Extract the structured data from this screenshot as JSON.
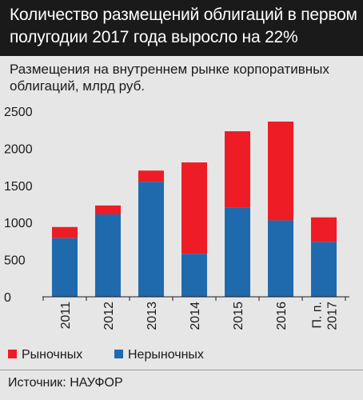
{
  "header": {
    "title_lines": [
      "Количество размещений облигаций в первом",
      "полугодии 2017 года выросло на 22%"
    ]
  },
  "subtitle_lines": [
    "Размещения на внутреннем рынке корпоративных",
    "облигаций, млрд руб."
  ],
  "colors": {
    "market": "#ee1c25",
    "nonmarket": "#1f6aad",
    "axis": "#1a1a1a"
  },
  "chart_data": {
    "type": "bar",
    "stacked": true,
    "categories": [
      [
        "2011"
      ],
      [
        "2012"
      ],
      [
        "2013"
      ],
      [
        "2014"
      ],
      [
        "2015"
      ],
      [
        "2016"
      ],
      [
        "П. п.",
        "2017"
      ]
    ],
    "series": [
      {
        "name": "Нерыночных",
        "values": [
          790,
          1110,
          1550,
          580,
          1200,
          1030,
          740
        ]
      },
      {
        "name": "Рыночных",
        "values": [
          150,
          120,
          150,
          1230,
          1030,
          1330,
          330
        ]
      }
    ],
    "ylim": [
      0,
      2500
    ],
    "yticks": [
      0,
      500,
      1000,
      1500,
      2000,
      2500
    ],
    "grid": false,
    "legend_position": "bottom-left"
  },
  "legend": {
    "market_label": "Рыночных",
    "nonmarket_label": "Нерыночных"
  },
  "footer": {
    "source": "Источник: НАУФОР"
  }
}
